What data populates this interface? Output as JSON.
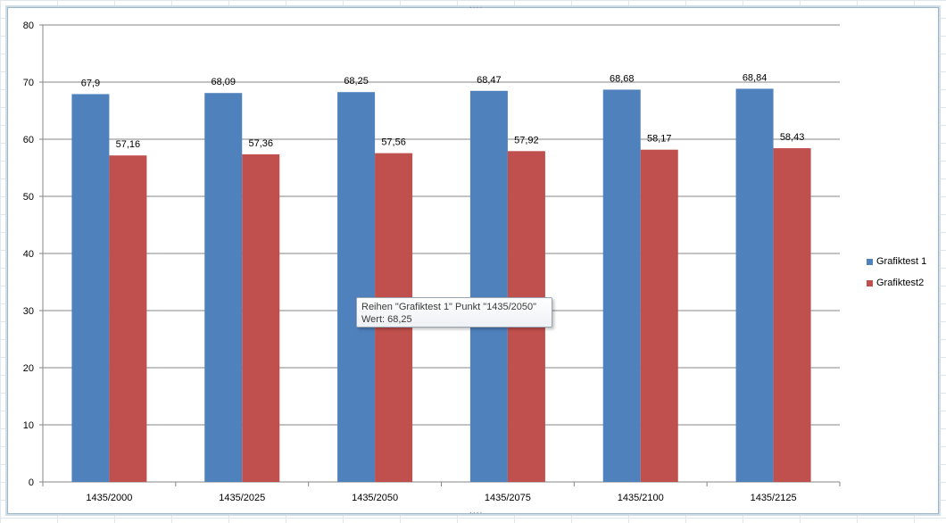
{
  "chart_data": {
    "type": "bar",
    "categories": [
      "1435/2000",
      "1435/2025",
      "1435/2050",
      "1435/2075",
      "1435/2100",
      "1435/2125"
    ],
    "series": [
      {
        "name": "Grafiktest 1",
        "color": "#4f81bd",
        "values": [
          67.9,
          68.09,
          68.25,
          68.47,
          68.68,
          68.84
        ],
        "labels": [
          "67,9",
          "68,09",
          "68,25",
          "68,47",
          "68,68",
          "68,84"
        ]
      },
      {
        "name": "Grafiktest2",
        "color": "#c0504d",
        "values": [
          57.16,
          57.36,
          57.56,
          57.92,
          58.17,
          58.43
        ],
        "labels": [
          "57,16",
          "57,36",
          "57,56",
          "57,92",
          "58,17",
          "58,43"
        ]
      }
    ],
    "ylim": [
      0,
      80
    ],
    "yticks": [
      0,
      10,
      20,
      30,
      40,
      50,
      60,
      70,
      80
    ],
    "grid": true,
    "legend_position": "right"
  },
  "tooltip": {
    "line1": "Reihen \"Grafiktest 1\" Punkt \"1435/2050\"",
    "line2": "Wert: 68,25"
  }
}
